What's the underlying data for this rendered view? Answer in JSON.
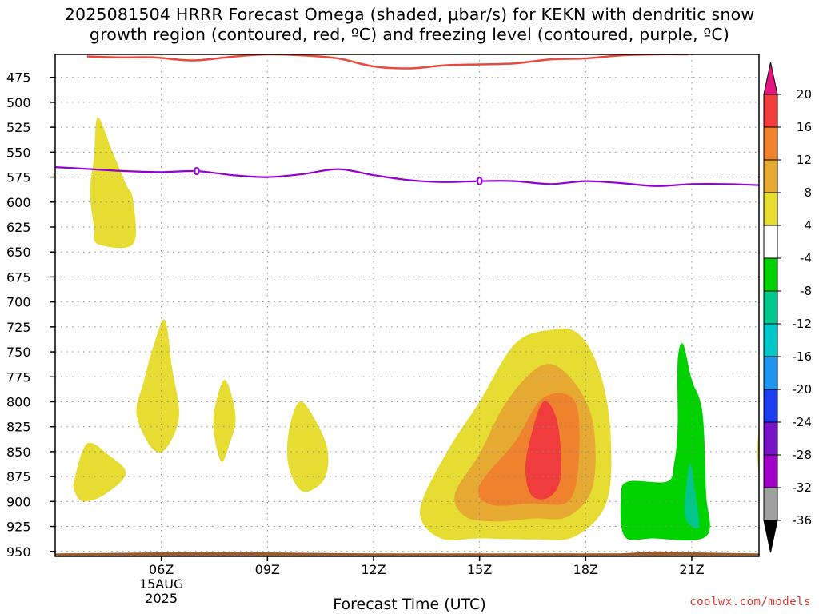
{
  "title_line1": "2025081504 HRRR Forecast Omega (shaded, μbar/s) for KEKN with dendritic snow",
  "title_line2": "growth region (contoured, red, ºC) and freezing level (contoured, purple, ºC)",
  "xlabel": "Forecast Time (UTC)",
  "credit": "coolwx.com/models",
  "chart_data": {
    "type": "heatmap",
    "x_axis": {
      "range_hours": [
        3.0,
        22.9
      ],
      "ticks": [
        {
          "value": 6,
          "label": "06Z",
          "sublabel1": "15AUG",
          "sublabel2": "2025"
        },
        {
          "value": 9,
          "label": "09Z"
        },
        {
          "value": 12,
          "label": "12Z"
        },
        {
          "value": 15,
          "label": "15Z"
        },
        {
          "value": 18,
          "label": "18Z"
        },
        {
          "value": 21,
          "label": "21Z"
        }
      ]
    },
    "y_axis": {
      "range_mb": [
        955,
        452
      ],
      "ticks": [
        475,
        500,
        525,
        550,
        575,
        600,
        625,
        650,
        675,
        700,
        725,
        750,
        775,
        800,
        825,
        850,
        875,
        900,
        925,
        950
      ]
    },
    "grid": true,
    "colorbar": {
      "labels": [
        "20",
        "16",
        "12",
        "8",
        "4",
        "-4",
        "-8",
        "-12",
        "-16",
        "-20",
        "-24",
        "-28",
        "-32",
        "-36"
      ],
      "colors": [
        "#f03c3c",
        "#f0822d",
        "#e6aa32",
        "#e6dc32",
        "#ffffff",
        "#00d200",
        "#00c88c",
        "#00c8c8",
        "#1e96f0",
        "#1e3cf0",
        "#7814c8",
        "#a000c8",
        "#a0a0a0"
      ],
      "top_arrow_color": "#e6147f",
      "bottom_arrow_color": "#000000"
    },
    "omega_regions": [
      {
        "color": "#e6dc32",
        "points": [
          [
            4.0,
            600
          ],
          [
            4.0,
            580
          ],
          [
            4.1,
            555
          ],
          [
            4.2,
            515
          ],
          [
            4.6,
            548
          ],
          [
            5.0,
            582
          ],
          [
            5.2,
            598
          ],
          [
            5.2,
            642
          ],
          [
            4.2,
            642
          ],
          [
            4.1,
            625
          ]
        ]
      },
      {
        "color": "#e6dc32",
        "points": [
          [
            5.3,
            812
          ],
          [
            5.5,
            780
          ],
          [
            5.8,
            742
          ],
          [
            6.1,
            718
          ],
          [
            6.3,
            765
          ],
          [
            6.5,
            815
          ],
          [
            6.1,
            848
          ],
          [
            5.7,
            845
          ]
        ]
      },
      {
        "color": "#e6dc32",
        "points": [
          [
            3.55,
            877
          ],
          [
            3.9,
            842
          ],
          [
            4.5,
            853
          ],
          [
            5.0,
            872
          ],
          [
            4.4,
            893
          ],
          [
            3.8,
            900
          ],
          [
            3.55,
            890
          ]
        ]
      },
      {
        "color": "#e6dc32",
        "points": [
          [
            7.5,
            808
          ],
          [
            7.8,
            778
          ],
          [
            8.1,
            815
          ],
          [
            7.9,
            845
          ],
          [
            7.7,
            860
          ],
          [
            7.5,
            835
          ]
        ]
      },
      {
        "color": "#e6dc32",
        "points": [
          [
            9.6,
            830
          ],
          [
            9.9,
            800
          ],
          [
            10.3,
            815
          ],
          [
            10.7,
            848
          ],
          [
            10.6,
            878
          ],
          [
            10.0,
            890
          ],
          [
            9.6,
            865
          ]
        ]
      },
      {
        "color": "#e6dc32",
        "points": [
          [
            13.4,
            897
          ],
          [
            14.2,
            843
          ],
          [
            15.0,
            800
          ],
          [
            16.0,
            742
          ],
          [
            17.0,
            728
          ],
          [
            17.8,
            732
          ],
          [
            18.4,
            770
          ],
          [
            18.7,
            830
          ],
          [
            18.6,
            900
          ],
          [
            17.7,
            935
          ],
          [
            16.5,
            938
          ],
          [
            15.0,
            937
          ],
          [
            14.0,
            938
          ],
          [
            13.4,
            922
          ]
        ]
      },
      {
        "color": "#e6aa32",
        "points": [
          [
            14.3,
            893
          ],
          [
            15.0,
            852
          ],
          [
            15.8,
            798
          ],
          [
            16.8,
            763
          ],
          [
            17.6,
            777
          ],
          [
            18.2,
            820
          ],
          [
            18.2,
            885
          ],
          [
            17.5,
            915
          ],
          [
            16.5,
            917
          ],
          [
            15.4,
            920
          ],
          [
            14.6,
            915
          ]
        ]
      },
      {
        "color": "#f0822d",
        "points": [
          [
            15.0,
            884
          ],
          [
            16.0,
            840
          ],
          [
            16.8,
            796
          ],
          [
            17.7,
            800
          ],
          [
            17.8,
            862
          ],
          [
            17.5,
            900
          ],
          [
            16.5,
            902
          ],
          [
            15.3,
            903
          ]
        ]
      },
      {
        "color": "#f03c3c",
        "points": [
          [
            16.4,
            842
          ],
          [
            16.8,
            800
          ],
          [
            17.2,
            820
          ],
          [
            17.3,
            873
          ],
          [
            17.0,
            895
          ],
          [
            16.5,
            895
          ],
          [
            16.3,
            872
          ]
        ]
      },
      {
        "color": "#00d200",
        "points": [
          [
            19.0,
            895
          ],
          [
            19.2,
            880
          ],
          [
            20.3,
            880
          ],
          [
            20.5,
            862
          ],
          [
            20.6,
            825
          ],
          [
            20.6,
            760
          ],
          [
            20.75,
            742
          ],
          [
            21.0,
            778
          ],
          [
            21.3,
            810
          ],
          [
            21.4,
            890
          ],
          [
            21.4,
            935
          ],
          [
            19.9,
            937
          ],
          [
            19.1,
            935
          ]
        ]
      },
      {
        "color": "#00c88c",
        "points": [
          [
            20.8,
            905
          ],
          [
            20.95,
            862
          ],
          [
            21.1,
            892
          ],
          [
            21.2,
            925
          ],
          [
            20.9,
            922
          ]
        ]
      },
      {
        "color": "#e6dc32",
        "points": [
          [
            22.9,
            825
          ],
          [
            22.95,
            820
          ],
          [
            22.95,
            880
          ],
          [
            22.9,
            875
          ],
          [
            22.85,
            850
          ]
        ]
      }
    ],
    "dgz_contour": {
      "color": "#e84a3c",
      "points": [
        [
          3.9,
          454
        ],
        [
          4.8,
          455
        ],
        [
          5.8,
          455
        ],
        [
          6.9,
          458
        ],
        [
          8.1,
          454
        ],
        [
          9.0,
          452
        ],
        [
          10.0,
          453
        ],
        [
          11.0,
          456
        ],
        [
          12.0,
          464
        ],
        [
          13.0,
          466
        ],
        [
          14.0,
          463
        ],
        [
          15.0,
          462
        ],
        [
          16.0,
          461
        ],
        [
          17.0,
          457
        ],
        [
          18.0,
          456
        ],
        [
          19.0,
          453
        ],
        [
          20.0,
          452
        ],
        [
          20.9,
          452
        ]
      ]
    },
    "freezing_level": {
      "color": "#9400d3",
      "label": "0",
      "label_positions_hours": [
        7.0,
        15.0
      ],
      "points": [
        [
          3.0,
          565
        ],
        [
          4.0,
          567
        ],
        [
          5.0,
          569
        ],
        [
          6.0,
          570
        ],
        [
          7.0,
          569
        ],
        [
          8.0,
          573
        ],
        [
          9.0,
          575
        ],
        [
          10.0,
          572
        ],
        [
          11.0,
          567
        ],
        [
          12.0,
          573
        ],
        [
          13.0,
          578
        ],
        [
          14.0,
          580
        ],
        [
          15.0,
          579
        ],
        [
          16.0,
          579
        ],
        [
          17.0,
          582
        ],
        [
          18.0,
          579
        ],
        [
          19.0,
          581
        ],
        [
          20.0,
          584
        ],
        [
          21.0,
          582
        ],
        [
          22.0,
          582
        ],
        [
          22.9,
          583
        ]
      ]
    },
    "terrain": {
      "color": "#9b5a2a",
      "base_mb": 955,
      "points": [
        [
          3.0,
          952
        ],
        [
          6.0,
          951
        ],
        [
          9.0,
          951
        ],
        [
          12.0,
          952
        ],
        [
          15.0,
          952
        ],
        [
          18.0,
          952
        ],
        [
          19.0,
          952
        ],
        [
          20.0,
          950
        ],
        [
          21.0,
          951
        ],
        [
          22.9,
          952
        ]
      ]
    }
  }
}
